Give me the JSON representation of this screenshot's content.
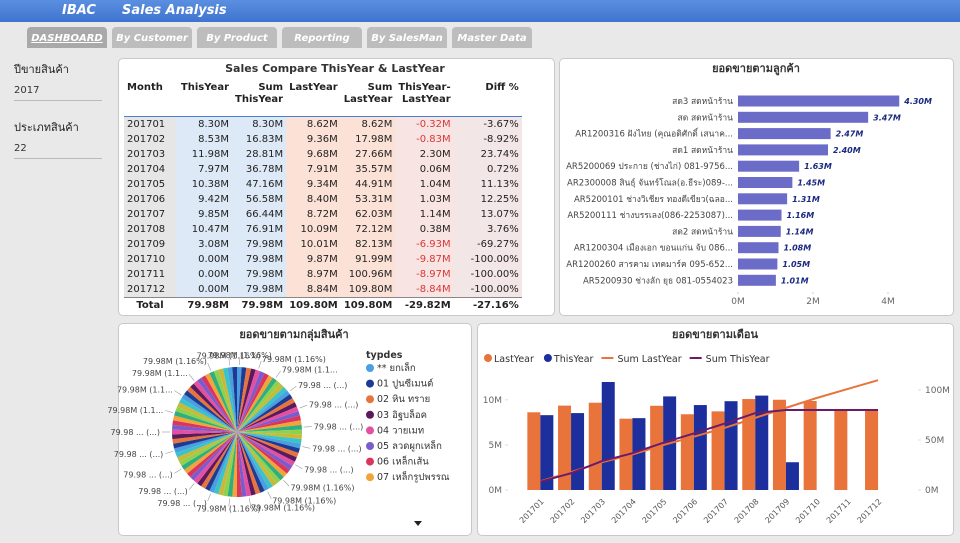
{
  "header": {
    "logo": "IBAC",
    "title": "Sales Analysis"
  },
  "tabs": [
    "DASHBOARD",
    "By Customer",
    "By Product",
    "Reporting",
    "By SalesMan",
    "Master Data"
  ],
  "filters": [
    {
      "label": "ปีขายสินค้า",
      "value": "2017"
    },
    {
      "label": "ประเภทสินค้า",
      "value": "22"
    }
  ],
  "table": {
    "title": "Sales Compare ThisYear & LastYear",
    "columns": [
      "Month",
      "ThisYear",
      "Sum ThisYear",
      "LastYear",
      "Sum LastYear",
      "ThisYear-LastYear",
      "Diff %"
    ],
    "rows": [
      [
        "201701",
        "8.30M",
        "8.30M",
        "8.62M",
        "8.62M",
        "-0.32M",
        "-3.67%"
      ],
      [
        "201702",
        "8.53M",
        "16.83M",
        "9.36M",
        "17.98M",
        "-0.83M",
        "-8.92%"
      ],
      [
        "201703",
        "11.98M",
        "28.81M",
        "9.68M",
        "27.66M",
        "2.30M",
        "23.74%"
      ],
      [
        "201704",
        "7.97M",
        "36.78M",
        "7.91M",
        "35.57M",
        "0.06M",
        "0.72%"
      ],
      [
        "201705",
        "10.38M",
        "47.16M",
        "9.34M",
        "44.91M",
        "1.04M",
        "11.13%"
      ],
      [
        "201706",
        "9.42M",
        "56.58M",
        "8.40M",
        "53.31M",
        "1.03M",
        "12.25%"
      ],
      [
        "201707",
        "9.85M",
        "66.44M",
        "8.72M",
        "62.03M",
        "1.14M",
        "13.07%"
      ],
      [
        "201708",
        "10.47M",
        "76.91M",
        "10.09M",
        "72.12M",
        "0.38M",
        "3.76%"
      ],
      [
        "201709",
        "3.08M",
        "79.98M",
        "10.01M",
        "82.13M",
        "-6.93M",
        "-69.27%"
      ],
      [
        "201710",
        "0.00M",
        "79.98M",
        "9.87M",
        "91.99M",
        "-9.87M",
        "-100.00%"
      ],
      [
        "201711",
        "0.00M",
        "79.98M",
        "8.97M",
        "100.96M",
        "-8.97M",
        "-100.00%"
      ],
      [
        "201712",
        "0.00M",
        "79.98M",
        "8.84M",
        "109.80M",
        "-8.84M",
        "-100.00%"
      ]
    ],
    "total": [
      "Total",
      "79.98M",
      "79.98M",
      "109.80M",
      "109.80M",
      "-29.82M",
      "-27.16%"
    ]
  },
  "chart_data": [
    {
      "type": "hbar",
      "title": "ยอดขายตามลูกค้า",
      "categories": [
        "สด3 สดหน้าร้าน",
        "สด สดหน้าร้าน",
        "AR1200316 ฝังไทย (คุณอดิศักดิ์ เสนาค...",
        "สด1 สดหน้าร้าน",
        "AR5200069 ประกาย (ช่างไก่) 081-9756...",
        "AR2300008 สินธุ์ จันทร์โณล(อ.ธีระ)089-...",
        "AR5200101 ช่างวิเชียร ทองดีเขียว(ฉลอ...",
        "AR5200111 ช่างบรรเลง(086-2253087)...",
        "สด2 สดหน้าร้าน",
        "AR1200304 เมืองเอก ขอนแก่น จ้บ 086...",
        "AR1200260 สารคาม เทคมาร์ค 095-652...",
        "AR5200930 ช่างลัก ยุธ 081-0554023"
      ],
      "values": [
        4.3,
        3.47,
        2.47,
        2.4,
        1.63,
        1.45,
        1.31,
        1.16,
        1.14,
        1.08,
        1.05,
        1.01
      ],
      "value_labels": [
        "4.30M",
        "3.47M",
        "2.47M",
        "2.40M",
        "1.63M",
        "1.45M",
        "1.31M",
        "1.16M",
        "1.14M",
        "1.08M",
        "1.05M",
        "1.01M"
      ],
      "color": "#6b6bc8",
      "xlim": [
        0,
        4.4
      ],
      "xticks": [
        {
          "value": 0,
          "label": "0M"
        },
        {
          "value": 2,
          "label": "2M"
        },
        {
          "value": 4,
          "label": "4M"
        }
      ]
    },
    {
      "type": "pie",
      "title": "ยอดขายตามกลุ่มสินค้า",
      "legend_title": "typdes",
      "values": [
        1.16,
        1.16,
        1.16,
        1.16,
        1.16,
        1.16,
        1.16,
        1.16,
        1.16,
        1.16,
        1.16,
        1.16,
        1.16,
        1.16,
        1.16,
        1.16,
        1.16,
        1.16,
        1.16,
        1.16,
        1.16,
        1.16,
        1.16,
        1.16,
        1.16,
        1.16,
        1.16,
        1.16,
        1.16,
        1.16,
        1.16,
        1.16,
        1.16,
        1.16,
        1.16,
        1.16,
        1.16,
        1.16,
        1.16,
        1.16,
        1.16,
        1.16,
        1.16,
        1.16,
        1.16,
        1.16,
        1.16,
        1.16,
        1.16,
        1.16,
        1.16,
        1.16,
        1.16,
        1.16,
        1.16,
        1.16,
        1.16,
        1.16,
        1.16,
        1.16,
        1.16,
        1.16,
        1.16,
        1.16,
        1.16,
        1.16,
        1.16,
        1.16,
        1.16,
        1.16,
        1.16,
        1.16,
        1.16,
        1.16,
        1.16,
        1.16,
        1.16,
        1.16,
        1.16,
        1.16,
        1.16,
        1.16,
        1.16,
        1.16,
        1.16,
        1.16
      ],
      "value_labels": [
        "79.98M (1.16%)",
        null,
        null,
        null,
        "79.98M (1.16%)",
        null,
        null,
        null,
        "79.98M (1.1...",
        null,
        null,
        null,
        "79.98 ... (...)",
        null,
        null,
        null,
        "79.98 ... (...)",
        null,
        null,
        null,
        "79.98 ... (...)",
        null,
        null,
        null,
        "79.98 ... (...)",
        null,
        null,
        null,
        "79.98 ... (...)",
        null,
        null,
        null,
        "79.98M (1.16%)",
        null,
        null,
        null,
        "79.98M (1.16%)",
        null,
        null,
        null,
        "79.98M (1.16%)",
        null,
        null,
        null,
        "79.98M (1.16%)",
        null,
        null,
        null,
        "79.98 ... (...)",
        null,
        null,
        null,
        "79.98 ... (...)",
        null,
        null,
        null,
        "79.98 ... (...)",
        null,
        null,
        null,
        "79.98 ... (...)",
        null,
        null,
        null,
        "79.98 ... (...)",
        null,
        null,
        null,
        "79.98M (1.1...",
        null,
        null,
        null,
        "79.98M (1.1...",
        null,
        null,
        null,
        "79.98M (1.1...",
        null,
        null,
        null,
        "79.98M (1.16%)",
        null,
        null,
        null,
        "79.98M (1.16%)",
        null
      ],
      "colors": [
        "#4a9fe0",
        "#1f3a93",
        "#e8743b",
        "#5b1a5e",
        "#e44fa0",
        "#7a5ccf",
        "#d9365e",
        "#f2a33a",
        "#2eaf7d",
        "#8fd14f",
        "#c9b93b",
        "#3bc3c9"
      ],
      "legend": [
        {
          "name": "** ยกเล็ก",
          "color": "#4a9fe0"
        },
        {
          "name": "01 ปูนซีเมนต์",
          "color": "#1f3a93"
        },
        {
          "name": "02 หิน ทราย",
          "color": "#e8743b"
        },
        {
          "name": "03 อิฐบล็อค",
          "color": "#5b1a5e"
        },
        {
          "name": "04 วายเมท",
          "color": "#e44fa0"
        },
        {
          "name": "05 ลวดผูกเหล็ก",
          "color": "#7a5ccf"
        },
        {
          "name": "06 เหล็กเส้น",
          "color": "#d9365e"
        },
        {
          "name": "07 เหล็กรูปพรรณ",
          "color": "#f2a33a"
        }
      ]
    },
    {
      "type": "combo",
      "title": "ยอดขายตามเดือน",
      "categories": [
        "201701",
        "201702",
        "201703",
        "201704",
        "201705",
        "201706",
        "201707",
        "201708",
        "201709",
        "201710",
        "201711",
        "201712"
      ],
      "series": [
        {
          "name": "LastYear",
          "kind": "bar",
          "color": "#e8743b",
          "values": [
            8.62,
            9.36,
            9.68,
            7.91,
            9.34,
            8.4,
            8.72,
            10.09,
            10.01,
            9.87,
            8.97,
            8.84
          ]
        },
        {
          "name": "ThisYear",
          "kind": "bar",
          "color": "#1c2f9c",
          "values": [
            8.3,
            8.53,
            11.98,
            7.97,
            10.38,
            9.42,
            9.85,
            10.47,
            3.08,
            0,
            0,
            0
          ]
        },
        {
          "name": "Sum LastYear",
          "kind": "line",
          "axis": "y2",
          "color": "#e8743b",
          "values": [
            8.62,
            17.98,
            27.66,
            35.57,
            44.91,
            53.31,
            62.03,
            72.12,
            82.13,
            91.99,
            100.96,
            109.8
          ]
        },
        {
          "name": "Sum ThisYear",
          "kind": "line",
          "axis": "y2",
          "color": "#6a1b6a",
          "values": [
            8.3,
            16.83,
            28.81,
            36.78,
            47.16,
            56.58,
            66.44,
            76.91,
            79.98,
            79.98,
            79.98,
            79.98
          ]
        }
      ],
      "ylim": [
        0,
        12.2
      ],
      "yticks": [
        {
          "value": 0,
          "label": "0M"
        },
        {
          "value": 5,
          "label": "5M"
        },
        {
          "value": 10,
          "label": "10M"
        }
      ],
      "y2lim": [
        0,
        110
      ],
      "y2ticks": [
        {
          "value": 0,
          "label": "0M"
        },
        {
          "value": 50,
          "label": "50M"
        },
        {
          "value": 100,
          "label": "100M"
        }
      ]
    }
  ]
}
